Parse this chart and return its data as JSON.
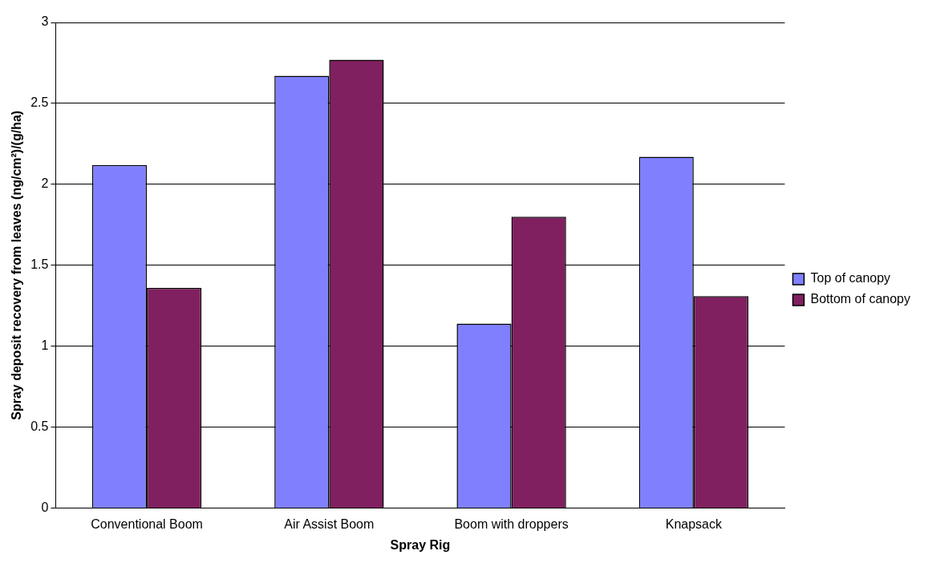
{
  "chart_data": {
    "type": "bar",
    "xlabel": "Spray Rig",
    "ylabel": "Spray deposit recovery from leaves (ng/cm²)/(g/ha)",
    "categories": [
      "Conventional Boom",
      "Air Assist Boom",
      "Boom with droppers",
      "Knapsack"
    ],
    "series": [
      {
        "name": "Top of canopy",
        "color": "#8080ff",
        "values": [
          2.12,
          2.67,
          1.14,
          2.17
        ]
      },
      {
        "name": "Bottom of canopy",
        "color": "#802060",
        "values": [
          1.36,
          2.77,
          1.8,
          1.31
        ]
      }
    ],
    "ylim": [
      0,
      3
    ],
    "yticks": [
      0,
      0.5,
      1,
      1.5,
      2,
      2.5,
      3
    ],
    "grid": "y",
    "legend": "right"
  }
}
